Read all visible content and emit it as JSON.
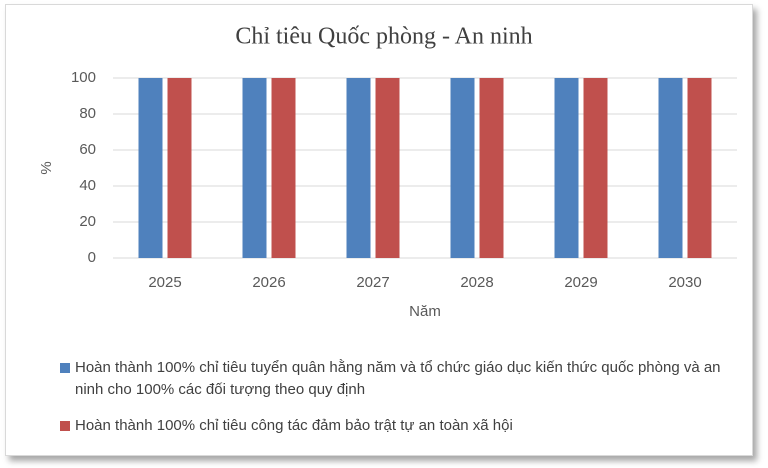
{
  "chart_data": {
    "type": "bar",
    "title": "Chỉ tiêu Quốc phòng - An ninh",
    "x_label": "Năm",
    "y_label": "%",
    "categories": [
      "2025",
      "2026",
      "2027",
      "2028",
      "2029",
      "2030"
    ],
    "series": [
      {
        "name": "Hoàn thành 100% chỉ tiêu tuyển quân hằng năm và tổ chức giáo dục kiến thức quốc phòng và an ninh cho 100% các đối tượng theo quy định",
        "color": "#4f81bd",
        "values": [
          100,
          100,
          100,
          100,
          100,
          100
        ]
      },
      {
        "name": "Hoàn thành 100% chỉ tiêu công tác đảm bảo trật tự an toàn xã hội",
        "color": "#c0504d",
        "values": [
          100,
          100,
          100,
          100,
          100,
          100
        ]
      }
    ],
    "ylim": [
      0,
      100
    ],
    "yticks": [
      0,
      20,
      40,
      60,
      80,
      100
    ],
    "grid": true,
    "legend": "bottom"
  }
}
